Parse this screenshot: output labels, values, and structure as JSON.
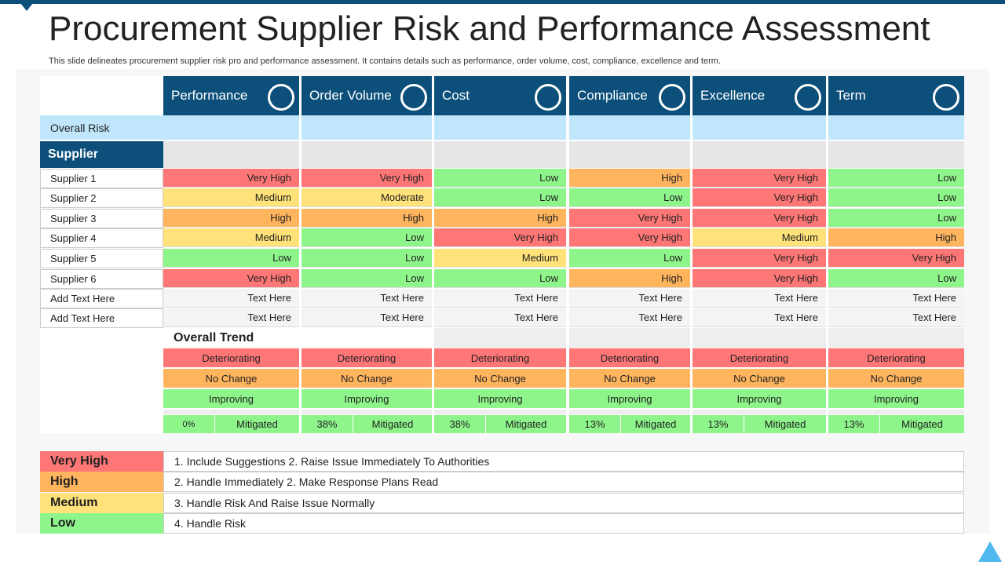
{
  "title": "Procurement Supplier Risk and Performance Assessment",
  "subtitle": "This slide delineates procurement supplier risk pro and performance assessment. It contains details such as performance, order volume, cost, compliance, excellence and term.",
  "columns": [
    "Performance",
    "Order Volume",
    "Cost",
    "Compliance",
    "Excellence",
    "Term"
  ],
  "overall_risk_label": "Overall Risk",
  "supplier_label": "Supplier",
  "rows": [
    {
      "label": "Supplier 1",
      "cells": [
        "Very High",
        "Very High",
        "Low",
        "High",
        "Very High",
        "Low"
      ]
    },
    {
      "label": "Supplier 2",
      "cells": [
        "Medium",
        "Moderate",
        "Low",
        "Low",
        "Very High",
        "Low"
      ]
    },
    {
      "label": "Supplier 3",
      "cells": [
        "High",
        "High",
        "High",
        "Very High",
        "Very High",
        "Low"
      ]
    },
    {
      "label": "Supplier 4",
      "cells": [
        "Medium",
        "Low",
        "Very High",
        "Very High",
        "Medium",
        "High"
      ]
    },
    {
      "label": "Supplier 5",
      "cells": [
        "Low",
        "Low",
        "Medium",
        "Low",
        "Very High",
        "Very High"
      ]
    },
    {
      "label": "Supplier 6",
      "cells": [
        "Very High",
        "Low",
        "Low",
        "High",
        "Very High",
        "Low"
      ]
    },
    {
      "label": "Add Text Here",
      "cells": [
        "Text Here",
        "Text Here",
        "Text Here",
        "Text Here",
        "Text Here",
        "Text Here"
      ]
    },
    {
      "label": "Add Text Here",
      "cells": [
        "Text Here",
        "Text Here",
        "Text Here",
        "Text Here",
        "Text Here",
        "Text Here"
      ]
    }
  ],
  "trend_label": "Overall Trend",
  "trends": [
    "Deteriorating",
    "No Change",
    "Improving"
  ],
  "mitigated": [
    {
      "value": "0%",
      "label": "Mitigated"
    },
    {
      "value": "38%",
      "label": "Mitigated"
    },
    {
      "value": "38%",
      "label": "Mitigated"
    },
    {
      "value": "13%",
      "label": "Mitigated"
    },
    {
      "value": "13%",
      "label": "Mitigated"
    },
    {
      "value": "13%",
      "label": "Mitigated"
    }
  ],
  "legend": [
    {
      "level": "Very High",
      "action": "1. Include Suggestions 2. Raise Issue Immediately To Authorities"
    },
    {
      "level": "High",
      "action": "2. Handle Immediately 2. Make Response Plans Read"
    },
    {
      "level": "Medium",
      "action": "3. Handle Risk And Raise Issue Normally"
    },
    {
      "level": "Low",
      "action": "4. Handle Risk"
    }
  ]
}
